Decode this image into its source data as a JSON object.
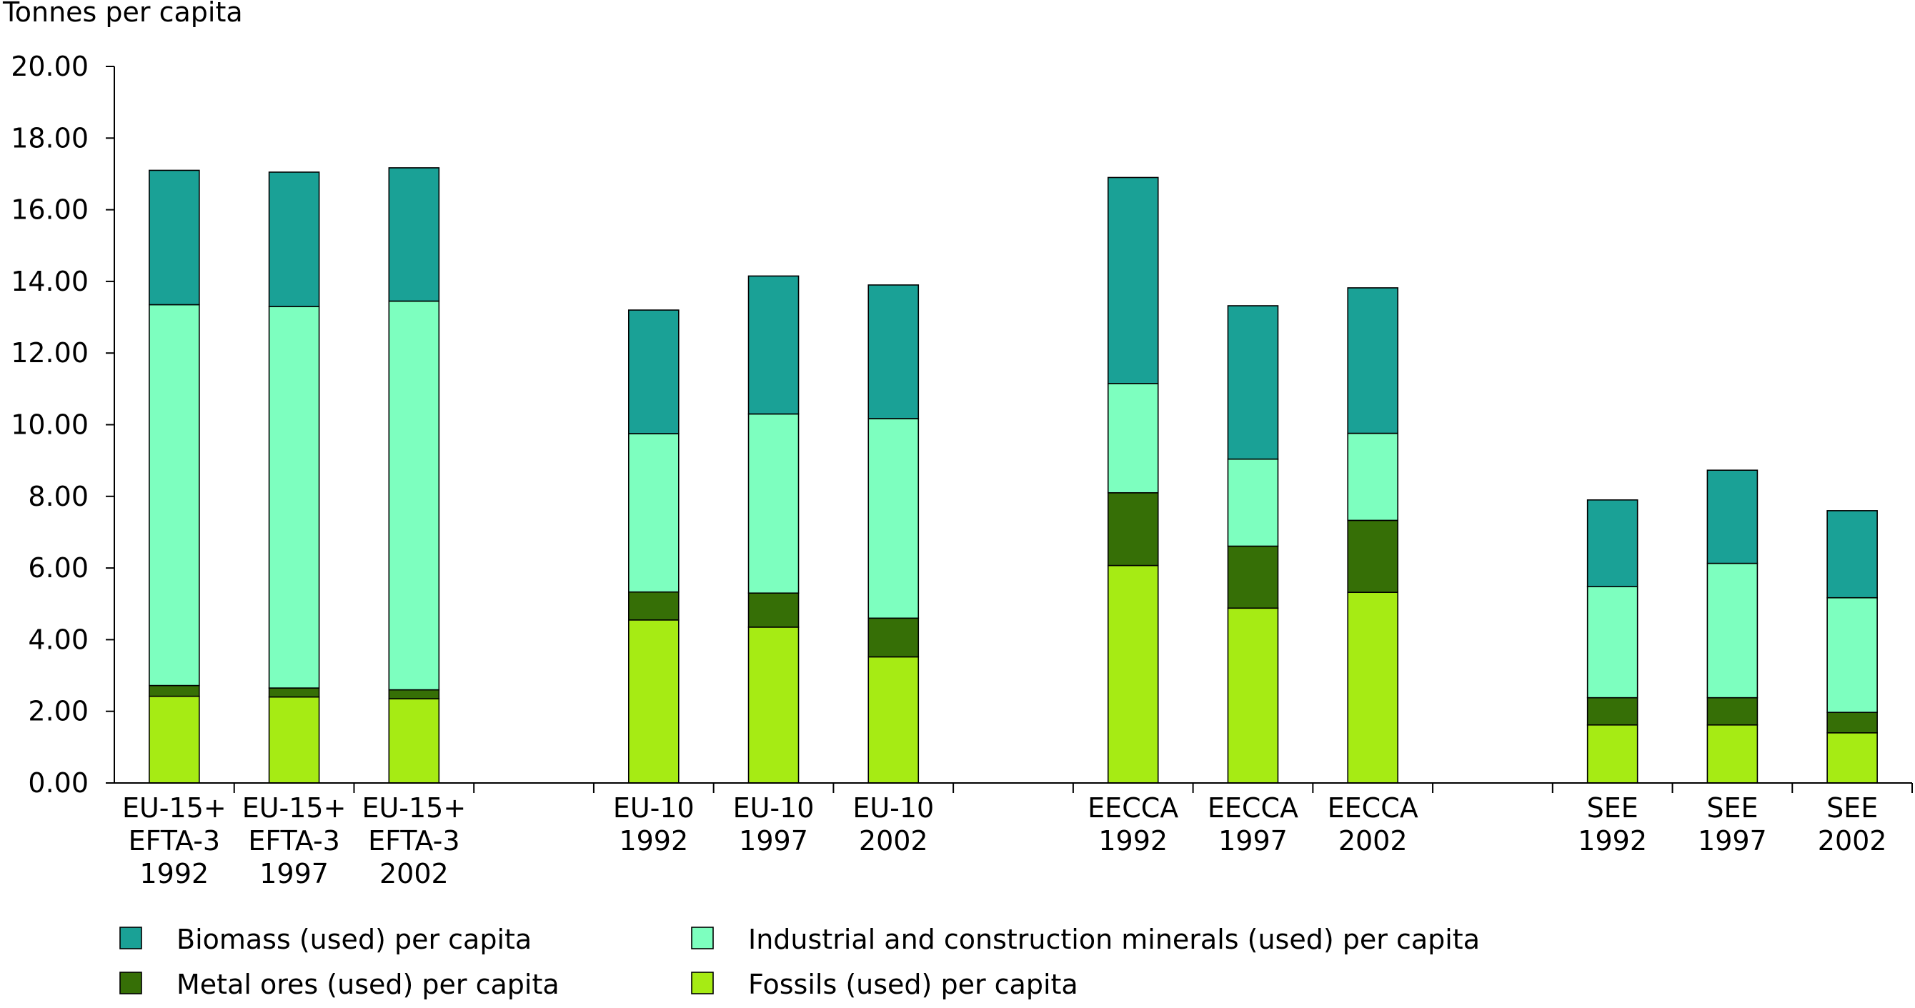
{
  "chart_data": {
    "type": "bar",
    "stacked": true,
    "ylabel": "Tonnes per capita",
    "ylim": [
      0,
      20
    ],
    "yticks": [
      "0.00",
      "2.00",
      "4.00",
      "6.00",
      "8.00",
      "10.00",
      "12.00",
      "14.00",
      "16.00",
      "18.00",
      "20.00"
    ],
    "categories": [
      [
        "EU-15+",
        "EFTA-3",
        "1992"
      ],
      [
        "EU-15+",
        "EFTA-3",
        "1997"
      ],
      [
        "EU-15+",
        "EFTA-3",
        "2002"
      ],
      [
        "EU-10",
        "1992"
      ],
      [
        "EU-10",
        "1997"
      ],
      [
        "EU-10",
        "2002"
      ],
      [
        "EECCA",
        "1992"
      ],
      [
        "EECCA",
        "1997"
      ],
      [
        "EECCA",
        "2002"
      ],
      [
        "SEE",
        "1992"
      ],
      [
        "SEE",
        "1997"
      ],
      [
        "SEE",
        "2002"
      ]
    ],
    "series": [
      {
        "name": "Fossils (used) per capita",
        "color": "#a6eb14",
        "values": [
          2.42,
          2.4,
          2.35,
          4.55,
          4.35,
          3.52,
          6.07,
          4.88,
          5.32,
          1.62,
          1.62,
          1.4
        ]
      },
      {
        "name": "Metal ores (used) per capita",
        "color": "#366f06",
        "values": [
          0.3,
          0.25,
          0.25,
          0.78,
          0.95,
          1.08,
          2.03,
          1.73,
          2.01,
          0.76,
          0.76,
          0.57
        ]
      },
      {
        "name": "Industrial and construction minerals (used) per capita",
        "color": "#7dffbf",
        "values": [
          10.63,
          10.65,
          10.85,
          4.42,
          5.0,
          5.57,
          3.05,
          2.43,
          2.43,
          3.1,
          3.75,
          3.2
        ]
      },
      {
        "name": "Biomass (used) per capita",
        "color": "#1aa196",
        "values": [
          3.75,
          3.75,
          3.72,
          3.45,
          3.85,
          3.73,
          5.75,
          4.28,
          4.06,
          2.42,
          2.6,
          2.43
        ]
      }
    ],
    "legend": [
      {
        "name": "Biomass (used) per capita",
        "color": "#1aa196"
      },
      {
        "name": "Industrial and construction minerals (used) per capita",
        "color": "#7dffbf"
      },
      {
        "name": "Metal ores (used) per capita",
        "color": "#366f06"
      },
      {
        "name": "Fossils (used) per capita",
        "color": "#a6eb14"
      }
    ],
    "legend_position": "bottom",
    "grid": false
  }
}
